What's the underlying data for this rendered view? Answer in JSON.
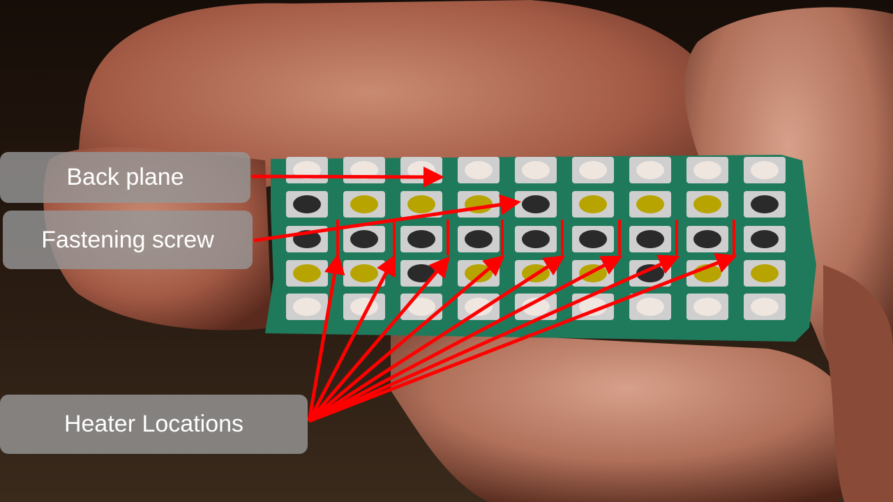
{
  "labels": {
    "back_plane": "Back plane",
    "fastening_screw": "Fastening screw",
    "heater_locations": "Heater Locations"
  },
  "colors": {
    "arrow": "#ff0000",
    "board": "#1f7a5c",
    "pad_silver": "#cfcfcf",
    "solder_yellow": "#c8b400",
    "label_box": "#969696",
    "skin": "#b06a56",
    "background": "#1e140e"
  }
}
